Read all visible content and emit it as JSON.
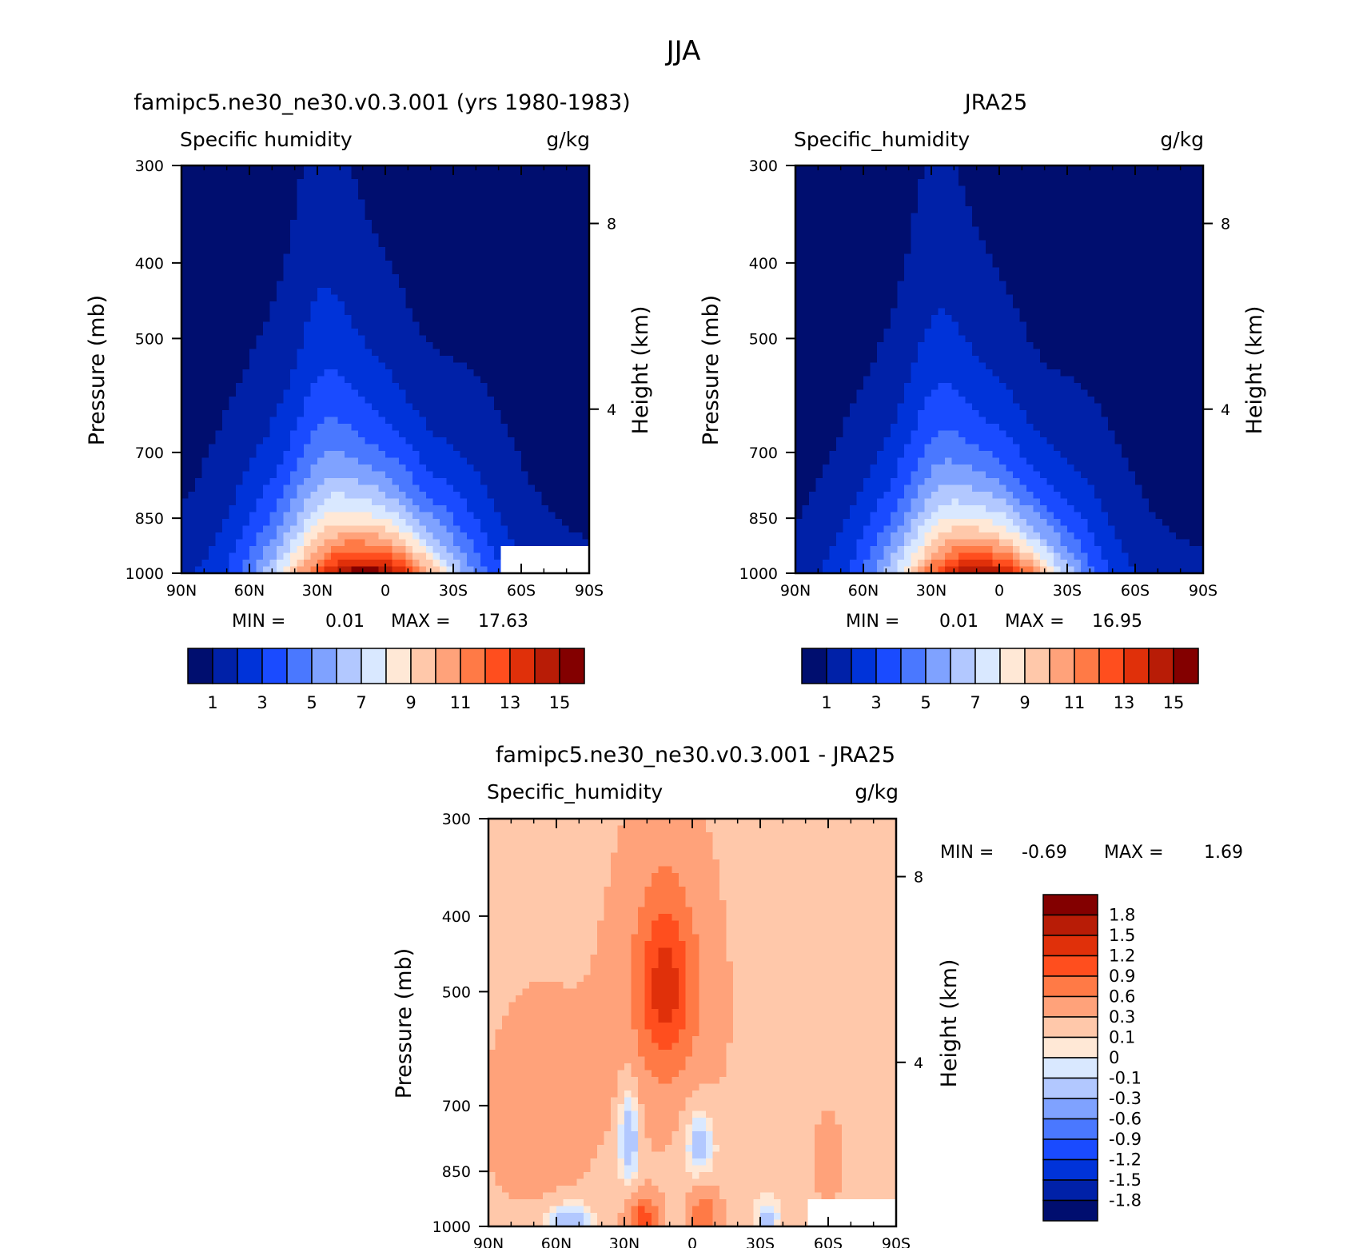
{
  "figure": {
    "title": "JJA"
  },
  "colors": {
    "abs_scale": [
      "#000e6f",
      "#0021a8",
      "#0033d9",
      "#1a4bff",
      "#4a78ff",
      "#7fa2ff",
      "#b2c8ff",
      "#d9e8ff",
      "#ffe8d6",
      "#ffc8aa",
      "#ffa27a",
      "#ff7a46",
      "#ff4e1e",
      "#e0300a",
      "#b81c06",
      "#830000"
    ],
    "diff_scale": [
      "#000e6f",
      "#0021a8",
      "#0033d9",
      "#1a4bff",
      "#4a78ff",
      "#7fa2ff",
      "#b2c8ff",
      "#d9e8ff",
      "#ffe8d6",
      "#ffc8aa",
      "#ffa27a",
      "#ff7a46",
      "#ff4e1e",
      "#e0300a",
      "#b81c06",
      "#830000"
    ]
  },
  "chart_data": [
    {
      "type": "heatmap",
      "panel_title": "famipc5.ne30_ne30.v0.3.001 (yrs 1980-1983)",
      "left_label": "Specific humidity",
      "right_label": "g/kg",
      "ylabel": "Pressure (mb)",
      "ylabel_right": "Height (km)",
      "x_ticks": [
        "90N",
        "60N",
        "30N",
        "0",
        "30S",
        "60S",
        "90S"
      ],
      "y_ticks": [
        "300",
        "400",
        "500",
        "700",
        "850",
        "1000"
      ],
      "y_ticks_right": [
        "8",
        "4"
      ],
      "ylim": [
        1000,
        300
      ],
      "xlim": [
        90,
        -90
      ],
      "min_label": "MIN =",
      "min_value": "0.01",
      "max_label": "MAX =",
      "max_value": "17.63",
      "colorbar_labels": [
        "1",
        "3",
        "5",
        "7",
        "9",
        "11",
        "13",
        "15"
      ],
      "field": {
        "peak": 17.63,
        "core_lat": 8,
        "spread": 30,
        "depth": 720,
        "missing_region": {
          "lat_from": -50,
          "p_from": 920
        }
      }
    },
    {
      "type": "heatmap",
      "panel_title": "JRA25",
      "left_label": "Specific_humidity",
      "right_label": "g/kg",
      "ylabel": "Pressure (mb)",
      "ylabel_right": "Height (km)",
      "x_ticks": [
        "90N",
        "60N",
        "30N",
        "0",
        "30S",
        "60S",
        "90S"
      ],
      "y_ticks": [
        "300",
        "400",
        "500",
        "700",
        "850",
        "1000"
      ],
      "y_ticks_right": [
        "8",
        "4"
      ],
      "ylim": [
        1000,
        300
      ],
      "xlim": [
        90,
        -90
      ],
      "min_label": "MIN =",
      "min_value": "0.01",
      "max_label": "MAX =",
      "max_value": "16.95",
      "colorbar_labels": [
        "1",
        "3",
        "5",
        "7",
        "9",
        "11",
        "13",
        "15"
      ],
      "field": {
        "peak": 16.95,
        "core_lat": 8,
        "spread": 29,
        "depth": 700
      }
    },
    {
      "type": "heatmap",
      "panel_title": "famipc5.ne30_ne30.v0.3.001 - JRA25",
      "left_label": "Specific_humidity",
      "right_label": "g/kg",
      "ylabel": "Pressure (mb)",
      "ylabel_right": "Height (km)",
      "x_ticks": [
        "90N",
        "60N",
        "30N",
        "0",
        "30S",
        "60S",
        "90S"
      ],
      "y_ticks": [
        "300",
        "400",
        "500",
        "700",
        "850",
        "1000"
      ],
      "y_ticks_right": [
        "8",
        "4"
      ],
      "ylim": [
        1000,
        300
      ],
      "xlim": [
        90,
        -90
      ],
      "min_label": "MIN =",
      "min_value": "-0.69",
      "max_label": "MAX =",
      "max_value": "1.69",
      "colorbar_labels": [
        "1.8",
        "1.5",
        "1.2",
        "0.9",
        "0.6",
        "0.3",
        "0.1",
        "0",
        "-0.1",
        "-0.3",
        "-0.6",
        "-0.9",
        "-1.2",
        "-1.5",
        "-1.8"
      ],
      "levels": [
        -1.8,
        -1.5,
        -1.2,
        -0.9,
        -0.6,
        -0.3,
        -0.1,
        0,
        0.1,
        0.3,
        0.6,
        0.9,
        1.2,
        1.5,
        1.8
      ]
    }
  ]
}
